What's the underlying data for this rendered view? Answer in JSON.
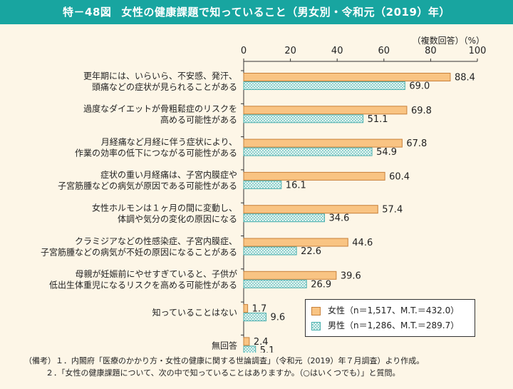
{
  "header": {
    "figure_number": "特－48図",
    "title": "女性の健康課題で知っていること（男女別・令和元（2019）年）"
  },
  "unit_note": "（複数回答）（%）",
  "chart_data": {
    "type": "bar",
    "orientation": "horizontal",
    "categories": [
      [
        "更年期には、いらいら、不安感、発汗、",
        "頭痛などの症状が見られることがある"
      ],
      [
        "過度なダイエットが骨粗鬆症のリスクを",
        "高める可能性がある"
      ],
      [
        "月経痛など月経に伴う症状により、",
        "作業の効率の低下につながる可能性がある"
      ],
      [
        "症状の重い月経痛は、子宮内膜症や",
        "子宮筋腫などの病気が原因である可能性がある"
      ],
      [
        "女性ホルモンは１ヶ月の間に変動し、",
        "体調や気分の変化の原因になる"
      ],
      [
        "クラミジアなどの性感染症、子宮内膜症、",
        "子宮筋腫などの病気が不妊の原因になることがある"
      ],
      [
        "母親が妊娠前にやせすぎていると、子供が",
        "低出生体重児になるリスクを高める可能性がある"
      ],
      [
        "知っていることはない"
      ],
      [
        "無回答"
      ]
    ],
    "series": [
      {
        "name": "女性（n＝1,517、M.T.＝432.0）",
        "values": [
          88.4,
          69.8,
          67.8,
          60.4,
          57.4,
          44.6,
          39.6,
          1.7,
          2.4
        ],
        "color": "#f9c483",
        "stroke": "#c8813b"
      },
      {
        "name": "男性（n＝1,286、M.T.＝289.7）",
        "values": [
          69.0,
          51.1,
          54.9,
          16.1,
          34.6,
          22.6,
          26.9,
          9.6,
          5.1
        ],
        "color": "#e4f4f2",
        "stroke": "#4bb0ae",
        "pattern_color": "#8fd0cc"
      }
    ],
    "x_ticks": [
      "0",
      "20",
      "40",
      "60",
      "80",
      "100"
    ],
    "xlim": [
      0,
      100
    ],
    "legend_position": "bottom-right"
  },
  "notes": [
    "（備考）１．内閣府「医療のかかり方・女性の健康に関する世論調査」（令和元（2019）年７月調査）より作成。",
    "２．「女性の健康課題について、次の中で知っていることはありますか。（○はいくつでも）」と質問。"
  ]
}
